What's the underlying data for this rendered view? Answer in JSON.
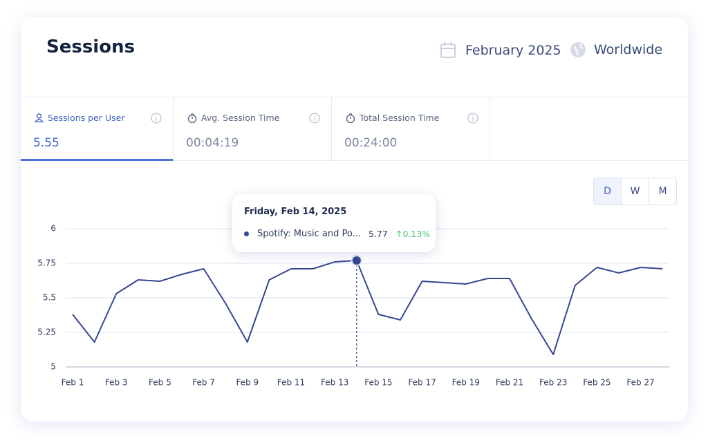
{
  "header": {
    "title": "Sessions",
    "date": "February 2025",
    "region": "Worldwide"
  },
  "metrics": [
    {
      "label": "Sessions per User",
      "value": "5.55"
    },
    {
      "label": "Avg. Session Time",
      "value": "00:04:19"
    },
    {
      "label": "Total Session Time",
      "value": "00:24:00"
    }
  ],
  "toggle": [
    "D",
    "W",
    "M"
  ],
  "tooltip": {
    "title": "Friday, Feb 14, 2025",
    "change": "↑0.13%"
  },
  "chart_data": {
    "type": "line",
    "categories": [
      "Feb 1",
      null,
      "Feb 3",
      null,
      "Feb 5",
      null,
      "Feb 7",
      null,
      "Feb 9",
      null,
      "Feb 11",
      null,
      "Feb 13",
      null,
      "Feb 15",
      null,
      "Feb 17",
      null,
      "Feb 19",
      null,
      "Feb 21",
      null,
      "Feb 23",
      null,
      "Feb 25",
      null,
      "Feb 27",
      null
    ],
    "series": [
      {
        "name": "Spotify: Music and Po...",
        "color": "#34468f",
        "values": [
          5.38,
          5.18,
          5.53,
          5.63,
          5.62,
          5.67,
          5.71,
          5.46,
          5.18,
          5.63,
          5.71,
          5.71,
          5.76,
          5.77,
          5.38,
          5.34,
          5.62,
          5.61,
          5.6,
          5.64,
          5.64,
          5.35,
          5.09,
          5.59,
          5.72,
          5.68,
          5.72,
          5.71
        ]
      }
    ],
    "ylim": [
      5,
      6
    ],
    "yticks": [
      5,
      5.25,
      5.5,
      5.75,
      6
    ],
    "grid": true
  }
}
